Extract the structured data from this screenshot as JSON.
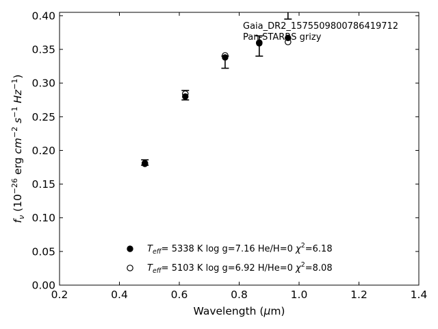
{
  "chart_data": {
    "type": "scatter",
    "title": "",
    "xlabel": "Wavelength (μm)",
    "ylabel": "f_ν (10^-26 erg cm^-2 s^-1 Hz^-1)",
    "xlim": [
      0.2,
      1.4
    ],
    "ylim": [
      0.0,
      0.405
    ],
    "x_ticks": [
      "0.2",
      "0.4",
      "0.6",
      "0.8",
      "1.0",
      "1.2",
      "1.4"
    ],
    "y_ticks": [
      "0.00",
      "0.05",
      "0.10",
      "0.15",
      "0.20",
      "0.25",
      "0.30",
      "0.35",
      "0.40"
    ],
    "grid": false,
    "annotations": [
      "Gaia_DR2_1575509800786419712",
      "Pan-STARRS grizy"
    ],
    "observed": {
      "x": [
        0.485,
        0.62,
        0.753,
        0.867,
        0.963
      ],
      "y": [
        0.182,
        0.282,
        0.331,
        0.355,
        0.42
      ],
      "yerr": [
        0.004,
        0.007,
        0.009,
        0.015,
        0.025
      ]
    },
    "series": [
      {
        "marker": "filled-circle",
        "x": [
          0.485,
          0.62,
          0.753,
          0.867,
          0.963
        ],
        "y": [
          0.18,
          0.28,
          0.338,
          0.359,
          0.367
        ]
      },
      {
        "marker": "open-circle",
        "x": [
          0.485,
          0.62,
          0.753,
          0.867,
          0.963
        ],
        "y": [
          0.181,
          0.284,
          0.341,
          0.36,
          0.361
        ]
      }
    ],
    "legend": {
      "placement": "bottom-center",
      "entries": [
        {
          "marker": "filled-circle",
          "teff_value": "5338 K",
          "logg": "log g=7.16",
          "comp": "He/H=0",
          "chi2_value": "=6.18"
        },
        {
          "marker": "open-circle",
          "teff_value": "5103 K",
          "logg": "log g=6.92",
          "comp": "H/He=0",
          "chi2_value": "=8.08"
        }
      ]
    }
  }
}
